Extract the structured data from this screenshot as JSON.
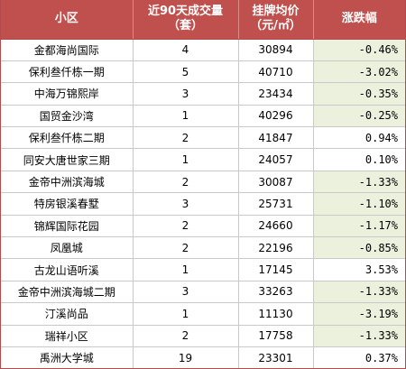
{
  "headers": {
    "community": "小区",
    "volume_line1": "近90天成交量",
    "volume_line2": "（套）",
    "price_line1": "挂牌均价",
    "price_line2": "（元/㎡）",
    "change": "涨跌幅"
  },
  "rows": [
    {
      "name": "金都海尚国际",
      "volume": "4",
      "price": "30894",
      "change": "-0.46%",
      "sign": "neg"
    },
    {
      "name": "保利叁仟栋一期",
      "volume": "5",
      "price": "40710",
      "change": "-3.02%",
      "sign": "neg"
    },
    {
      "name": "中海万锦熙岸",
      "volume": "3",
      "price": "23434",
      "change": "-0.35%",
      "sign": "neg"
    },
    {
      "name": "国贸金沙湾",
      "volume": "1",
      "price": "40296",
      "change": "-0.25%",
      "sign": "neg"
    },
    {
      "name": "保利叁仟栋二期",
      "volume": "2",
      "price": "41847",
      "change": "0.94%",
      "sign": "pos"
    },
    {
      "name": "同安大唐世家三期",
      "volume": "1",
      "price": "24057",
      "change": "0.10%",
      "sign": "pos"
    },
    {
      "name": "金帝中洲滨海城",
      "volume": "2",
      "price": "30087",
      "change": "-1.33%",
      "sign": "neg"
    },
    {
      "name": "特房银溪春墅",
      "volume": "3",
      "price": "25731",
      "change": "-1.10%",
      "sign": "neg"
    },
    {
      "name": "锦辉国际花园",
      "volume": "2",
      "price": "24660",
      "change": "-1.17%",
      "sign": "neg"
    },
    {
      "name": "凤凰城",
      "volume": "2",
      "price": "22196",
      "change": "-0.85%",
      "sign": "neg"
    },
    {
      "name": "古龙山语听溪",
      "volume": "1",
      "price": "17145",
      "change": "3.53%",
      "sign": "pos"
    },
    {
      "name": "金帝中洲滨海城二期",
      "volume": "3",
      "price": "33263",
      "change": "-1.33%",
      "sign": "neg"
    },
    {
      "name": "汀溪尚品",
      "volume": "1",
      "price": "11130",
      "change": "-3.19%",
      "sign": "neg"
    },
    {
      "name": "瑞祥小区",
      "volume": "2",
      "price": "17758",
      "change": "-1.33%",
      "sign": "neg"
    },
    {
      "name": "禹洲大学城",
      "volume": "19",
      "price": "23301",
      "change": "0.37%",
      "sign": "pos"
    }
  ],
  "colors": {
    "header_bg": "#c0504d",
    "negative_bg": "#ebf1dc",
    "positive_bg": "#ffffff"
  }
}
